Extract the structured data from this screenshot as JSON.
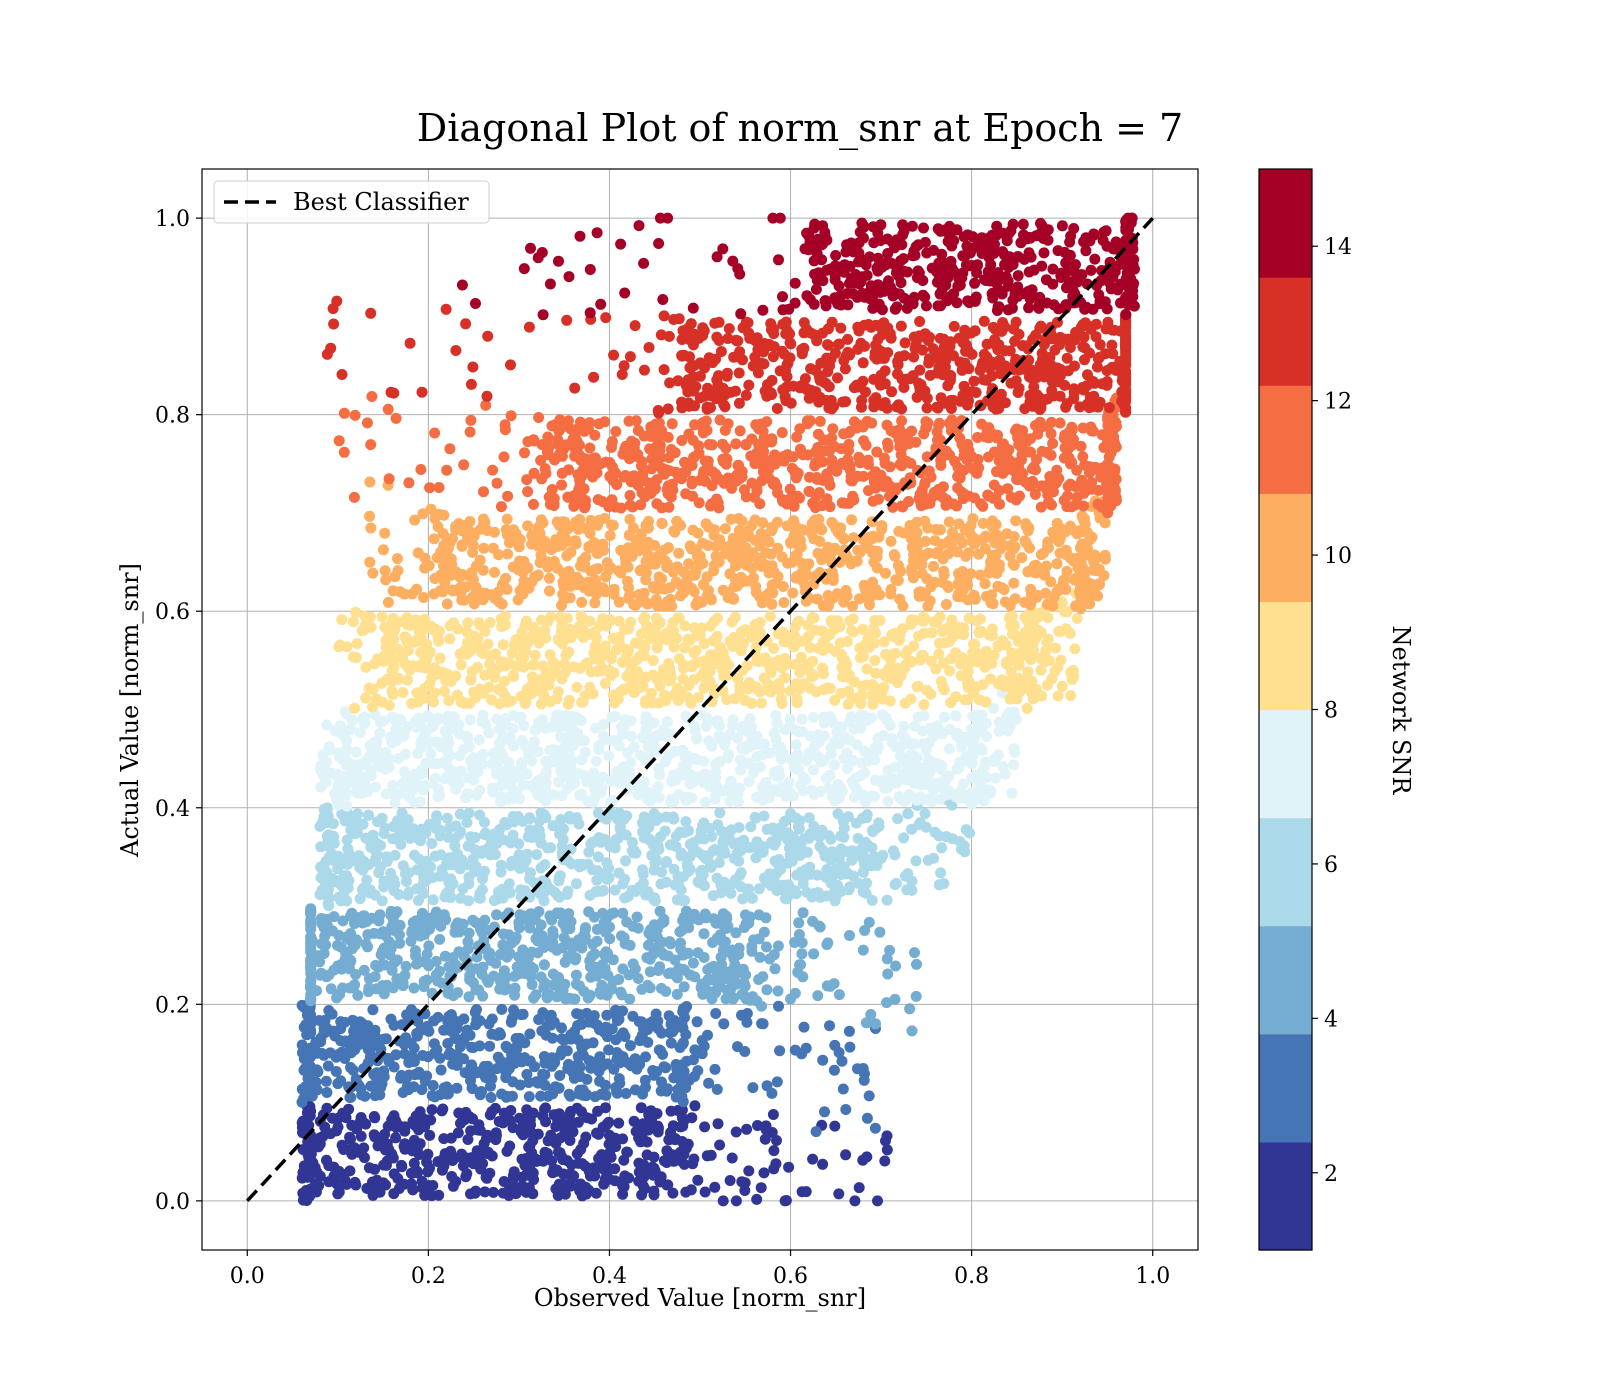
{
  "chart_data": {
    "type": "scatter",
    "title": "Diagonal Plot of norm_snr at Epoch = 7",
    "xlabel": "Observed Value [norm_snr]",
    "ylabel": "Actual Value [norm_snr]",
    "xlim": [
      -0.05,
      1.05
    ],
    "ylim": [
      -0.05,
      1.05
    ],
    "xticks": [
      "0.0",
      "0.2",
      "0.4",
      "0.6",
      "0.8",
      "1.0"
    ],
    "yticks": [
      "0.0",
      "0.2",
      "0.4",
      "0.6",
      "0.8",
      "1.0"
    ],
    "grid": true,
    "legend": {
      "placement": "top-left",
      "entries": [
        {
          "label": "Best Classifier",
          "style": "black dashed line"
        }
      ]
    },
    "reference_line": {
      "label": "Best Classifier",
      "x": [
        0.0,
        1.0
      ],
      "y": [
        0.0,
        1.0
      ]
    },
    "colorbar": {
      "label": "Network SNR",
      "range": [
        1,
        15
      ],
      "ticks": [
        "2",
        "4",
        "6",
        "8",
        "10",
        "12",
        "14"
      ],
      "colors": [
        "#313695",
        "#4575b4",
        "#74add1",
        "#abd9e9",
        "#e0f3f8",
        "#fee090",
        "#fdae61",
        "#f46d43",
        "#d73027",
        "#a50026"
      ]
    },
    "bands": [
      {
        "y_range": [
          0.0,
          0.1
        ],
        "color": "#313695",
        "core_x": [
          0.07,
          0.48
        ],
        "x_min": 0.06,
        "x_max": 0.72
      },
      {
        "y_range": [
          0.1,
          0.2
        ],
        "color": "#4575b4",
        "core_x": [
          0.07,
          0.48
        ],
        "x_min": 0.06,
        "x_max": 0.7
      },
      {
        "y_range": [
          0.2,
          0.3
        ],
        "color": "#74add1",
        "core_x": [
          0.07,
          0.55
        ],
        "x_min": 0.07,
        "x_max": 0.74
      },
      {
        "y_range": [
          0.3,
          0.4
        ],
        "color": "#abd9e9",
        "core_x": [
          0.09,
          0.68
        ],
        "x_min": 0.08,
        "x_max": 0.8
      },
      {
        "y_range": [
          0.4,
          0.5
        ],
        "color": "#e0f3f8",
        "core_x": [
          0.11,
          0.8
        ],
        "x_min": 0.08,
        "x_max": 0.85
      },
      {
        "y_range": [
          0.5,
          0.6
        ],
        "color": "#fee090",
        "core_x": [
          0.16,
          0.86
        ],
        "x_min": 0.1,
        "x_max": 0.92
      },
      {
        "y_range": [
          0.6,
          0.7
        ],
        "color": "#fdae61",
        "core_x": [
          0.22,
          0.92
        ],
        "x_min": 0.13,
        "x_max": 0.95
      },
      {
        "y_range": [
          0.7,
          0.8
        ],
        "color": "#f46d43",
        "core_x": [
          0.33,
          0.95
        ],
        "x_min": 0.1,
        "x_max": 0.96
      },
      {
        "y_range": [
          0.8,
          0.9
        ],
        "color": "#d73027",
        "core_x": [
          0.48,
          0.97
        ],
        "x_min": 0.08,
        "x_max": 0.97
      },
      {
        "y_range": [
          0.9,
          1.0
        ],
        "color": "#a50026",
        "core_x": [
          0.62,
          0.97
        ],
        "x_min": 0.16,
        "x_max": 0.98
      }
    ]
  }
}
